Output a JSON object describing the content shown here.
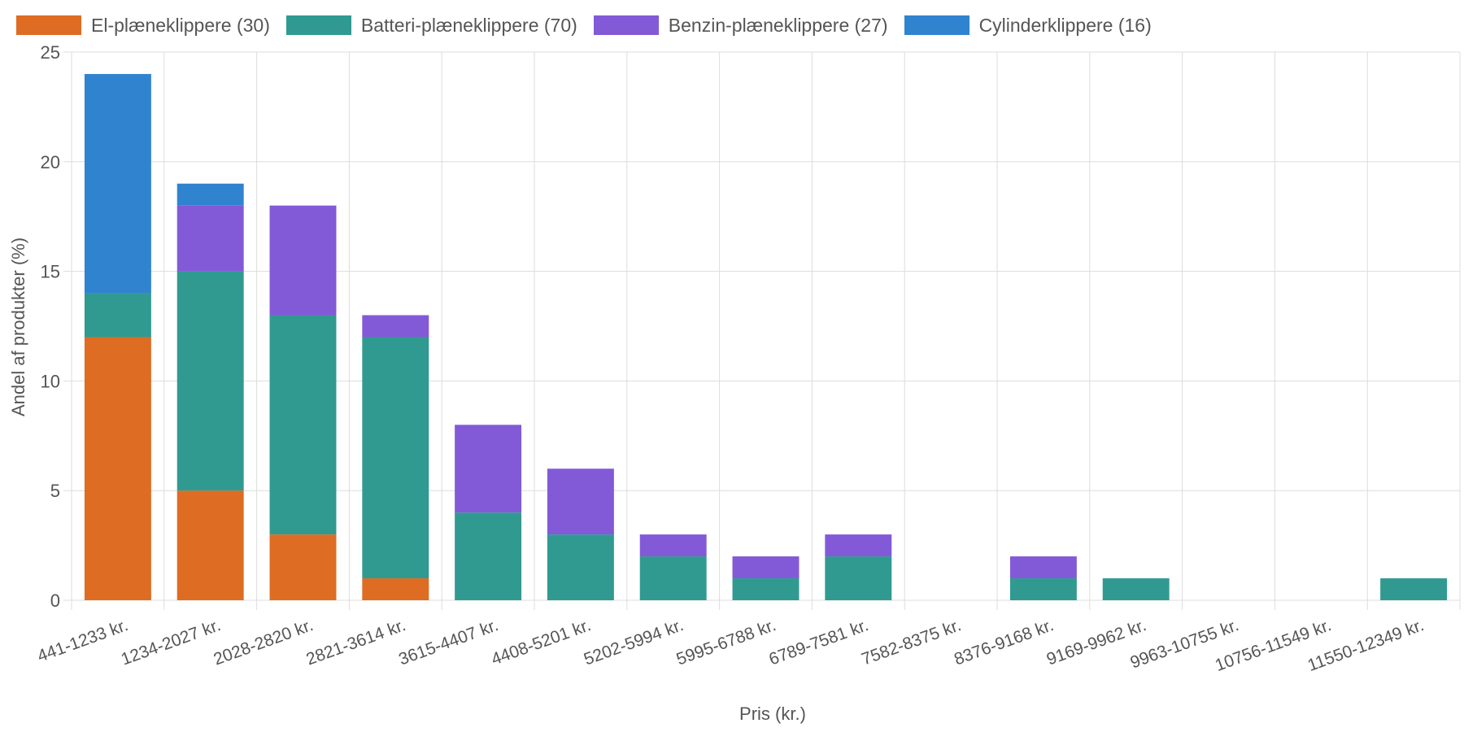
{
  "chart_data": {
    "type": "bar",
    "stacked": true,
    "xlabel": "Pris (kr.)",
    "ylabel": "Andel af produkter (%)",
    "ylim": [
      0,
      25
    ],
    "yticks": [
      0,
      5,
      10,
      15,
      20,
      25
    ],
    "grid": true,
    "legend_position": "top-left",
    "categories": [
      "441-1233 kr.",
      "1234-2027 kr.",
      "2028-2820 kr.",
      "2821-3614 kr.",
      "3615-4407 kr.",
      "4408-5201 kr.",
      "5202-5994 kr.",
      "5995-6788 kr.",
      "6789-7581 kr.",
      "7582-8375 kr.",
      "8376-9168 kr.",
      "9169-9962 kr.",
      "9963-10755 kr.",
      "10756-11549 kr.",
      "11550-12349 kr."
    ],
    "series": [
      {
        "name": "El-plæneklippere (30)",
        "color": "#de6c22",
        "values": [
          12,
          5,
          3,
          1,
          0,
          0,
          0,
          0,
          0,
          0,
          0,
          0,
          0,
          0,
          0
        ]
      },
      {
        "name": "Batteri-plæneklippere (70)",
        "color": "#309a91",
        "values": [
          2,
          10,
          10,
          11,
          4,
          3,
          2,
          1,
          2,
          0,
          1,
          1,
          0,
          0,
          1
        ]
      },
      {
        "name": "Benzin-plæneklippere (27)",
        "color": "#825ad7",
        "values": [
          0,
          3,
          5,
          1,
          4,
          3,
          1,
          1,
          1,
          0,
          1,
          0,
          0,
          0,
          0
        ]
      },
      {
        "name": "Cylinderklippere (16)",
        "color": "#3083cf",
        "values": [
          10,
          1,
          0,
          0,
          0,
          0,
          0,
          0,
          0,
          0,
          0,
          0,
          0,
          0,
          0
        ]
      }
    ]
  }
}
